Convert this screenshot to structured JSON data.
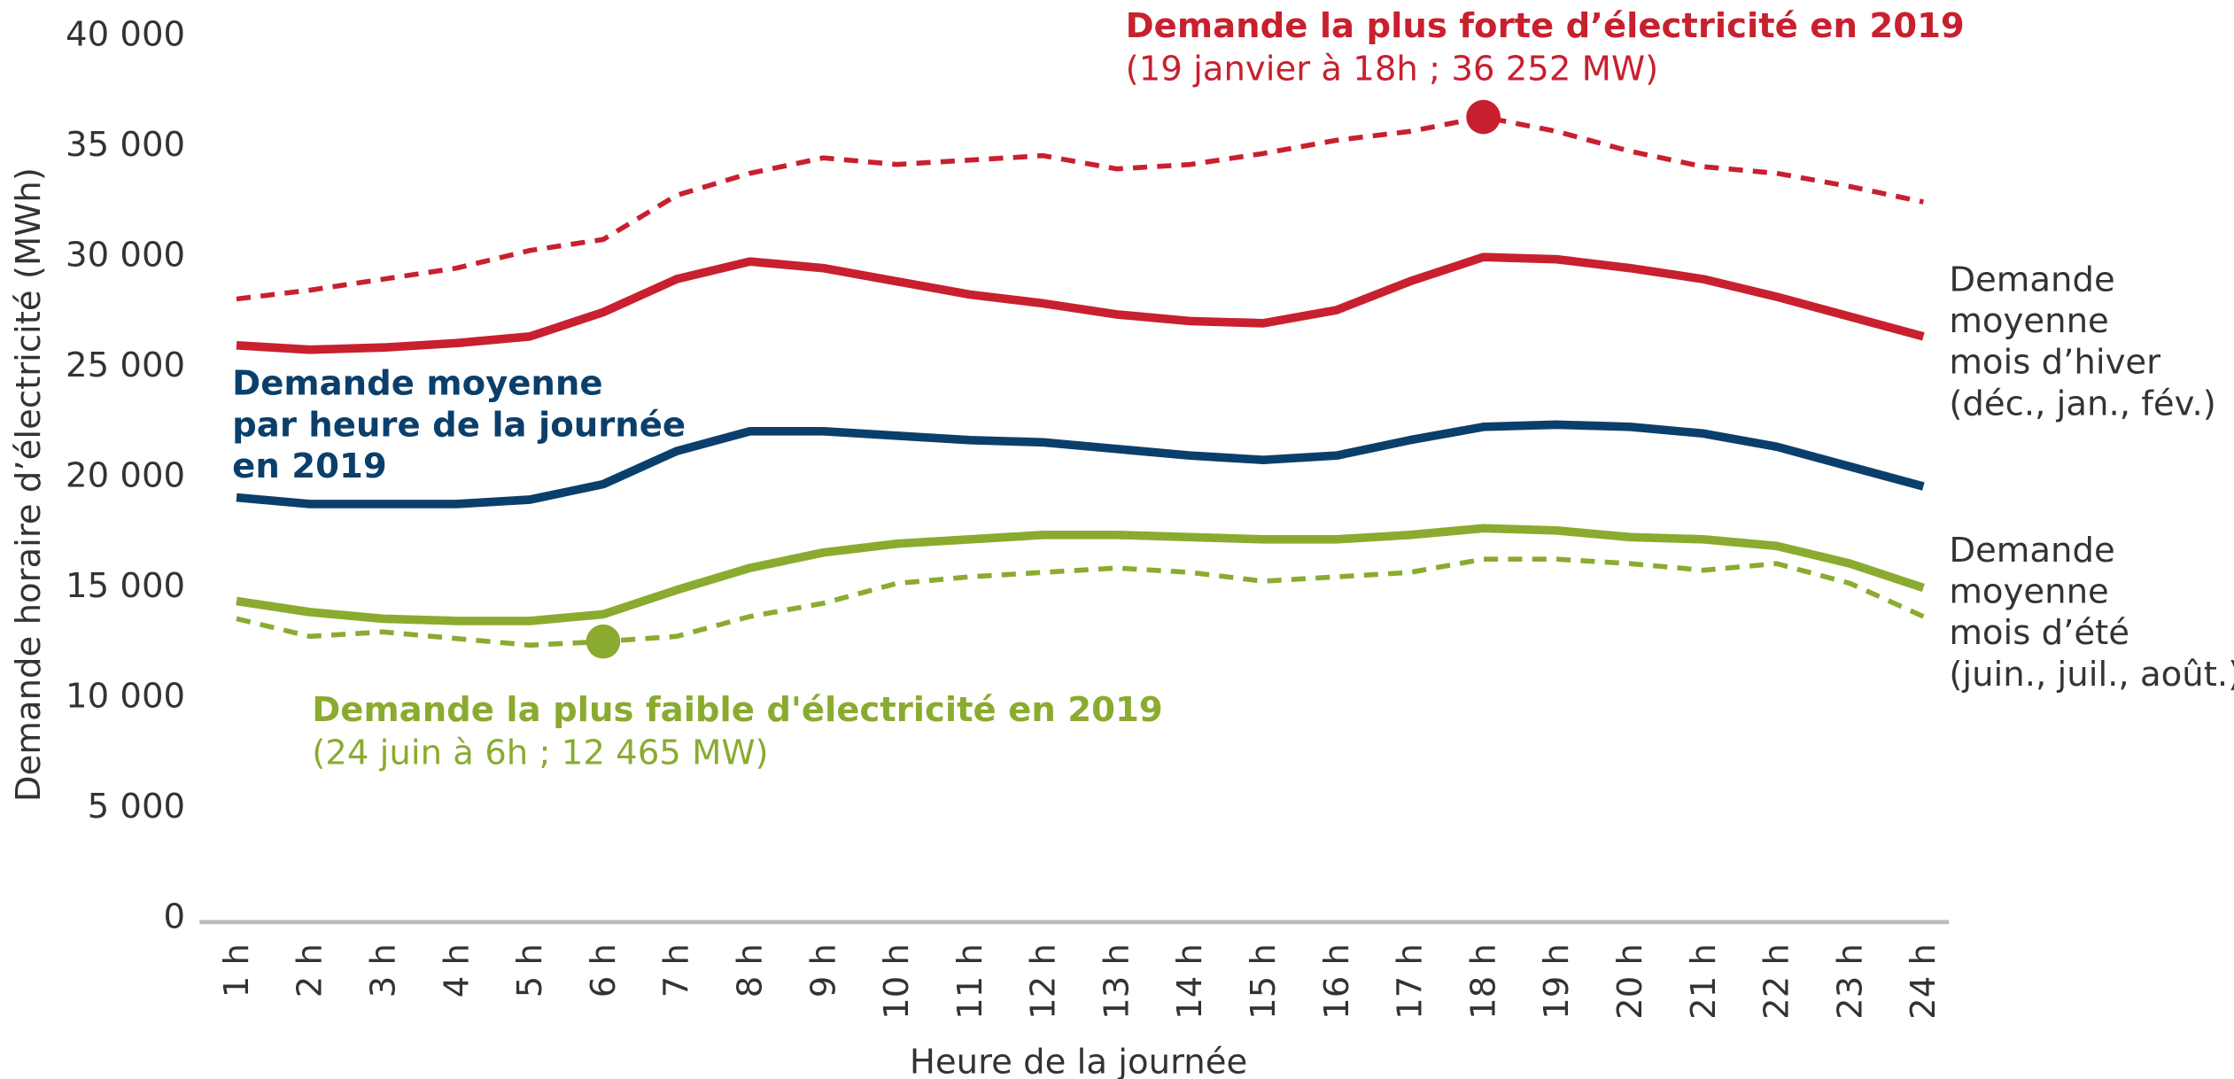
{
  "chart_data": {
    "type": "line",
    "x_label": "Heure de la journée",
    "y_label": "Demande horaire d’électricité (MWh)",
    "categories": [
      "1 h",
      "2 h",
      "3 h",
      "4 h",
      "5 h",
      "6 h",
      "7 h",
      "8 h",
      "9 h",
      "10 h",
      "11 h",
      "12 h",
      "13 h",
      "14 h",
      "15 h",
      "16 h",
      "17 h",
      "18 h",
      "19 h",
      "20 h",
      "21 h",
      "22 h",
      "23 h",
      "24 h"
    ],
    "ylim": [
      0,
      40000
    ],
    "yticks": [
      0,
      {
        "value": 5000,
        "label": "5 000"
      },
      {
        "value": 10000,
        "label": "10 000"
      },
      {
        "value": 15000,
        "label": "15 000"
      },
      {
        "value": 20000,
        "label": "20 000"
      },
      {
        "value": 25000,
        "label": "25 000"
      },
      {
        "value": 30000,
        "label": "30 000"
      },
      {
        "value": 35000,
        "label": "35 000"
      },
      {
        "value": 40000,
        "label": "40 000"
      }
    ],
    "series": [
      {
        "color": "#c8202f",
        "dashed": true,
        "values": [
          28000,
          28400,
          28900,
          29400,
          30200,
          30700,
          32700,
          33700,
          34400,
          34100,
          34300,
          34500,
          33900,
          34100,
          34600,
          35200,
          35600,
          36252,
          35600,
          34700,
          34000,
          33700,
          33100,
          32400
        ]
      },
      {
        "color": "#c8202f",
        "dashed": false,
        "values": [
          25900,
          25700,
          25800,
          26000,
          26300,
          27400,
          28900,
          29700,
          29400,
          28800,
          28200,
          27800,
          27300,
          27000,
          26900,
          27500,
          28800,
          29900,
          29800,
          29400,
          28900,
          28100,
          27200,
          26300
        ]
      },
      {
        "color": "#0b3f6b",
        "dashed": false,
        "values": [
          19000,
          18700,
          18700,
          18700,
          18900,
          19600,
          21100,
          22000,
          22000,
          21800,
          21600,
          21500,
          21200,
          20900,
          20700,
          20900,
          21600,
          22200,
          22300,
          22200,
          21900,
          21300,
          20400,
          19500
        ]
      },
      {
        "color": "#8aab2f",
        "dashed": false,
        "values": [
          14300,
          13800,
          13500,
          13400,
          13400,
          13700,
          14800,
          15800,
          16500,
          16900,
          17100,
          17300,
          17300,
          17200,
          17100,
          17100,
          17300,
          17600,
          17500,
          17200,
          17100,
          16800,
          16000,
          14900
        ]
      },
      {
        "color": "#8aab2f",
        "dashed": true,
        "values": [
          13500,
          12700,
          12900,
          12600,
          12300,
          12465,
          12700,
          13600,
          14200,
          15100,
          15400,
          15600,
          15800,
          15600,
          15200,
          15400,
          15600,
          16200,
          16200,
          16000,
          15700,
          16000,
          15100,
          13600
        ]
      }
    ],
    "highlights": [
      {
        "series": 0,
        "index": 17
      },
      {
        "series": 4,
        "index": 5
      }
    ],
    "annotations": [
      {
        "color": "#c8202f",
        "lines": [
          "Demande la plus forte d’électricité en 2019",
          "(19 janvier à 18h ; 36 252 MW)"
        ]
      },
      {
        "color": "#0b3f6b",
        "lines": [
          "Demande moyenne",
          "par heure de la journée",
          "en 2019"
        ]
      },
      {
        "color": "#8aab2f",
        "lines": [
          "Demande la plus faible d'électricité en 2019",
          "(24 juin à 6h ; 12 465 MW)"
        ]
      },
      {
        "color": "#333333",
        "lines": [
          "Demande",
          "moyenne",
          "mois d’hiver",
          "(déc., jan., fév.)"
        ]
      },
      {
        "color": "#333333",
        "lines": [
          "Demande",
          "moyenne",
          "mois d’été",
          "(juin., juil., août.)"
        ]
      }
    ]
  }
}
